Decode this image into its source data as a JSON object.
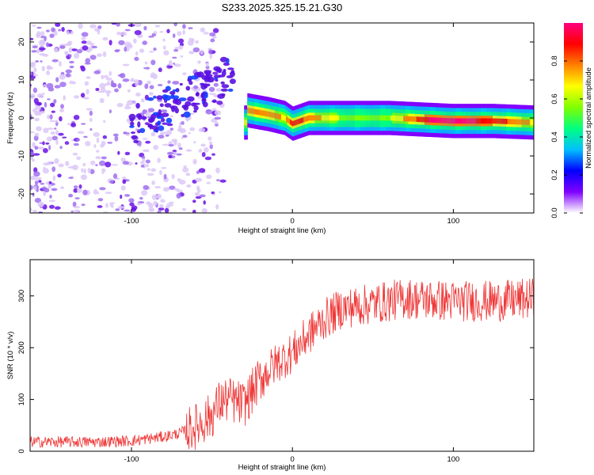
{
  "title": "S233.2025.325.15.21.G30",
  "chart_data": [
    {
      "type": "heatmap",
      "title": "S233.2025.325.15.21.G30",
      "xlabel": "Height of straight line (km)",
      "ylabel": "Frequency (Hz)",
      "xlim": [
        -163,
        150
      ],
      "ylim": [
        -25,
        25
      ],
      "xticks": [
        -100,
        0,
        100
      ],
      "yticks": [
        -20,
        -10,
        0,
        10,
        20
      ],
      "colorbar": {
        "label": "Normalized spectral amplitude",
        "range": [
          0,
          1
        ],
        "ticks": [
          0.0,
          0.2,
          0.4,
          0.6,
          0.8
        ],
        "tick_labels": [
          "0.0",
          "0.2",
          "0.4",
          "0.6",
          "0.8"
        ],
        "colormap": [
          "#ffffff",
          "#8000ff",
          "#0000ff",
          "#00c0ff",
          "#00ff80",
          "#80ff00",
          "#ffff00",
          "#ff8000",
          "#ff0000",
          "#ff0080"
        ]
      },
      "ridge": [
        {
          "x": -28,
          "f": 2.0,
          "a": 0.8
        },
        {
          "x": -15,
          "f": 1.0,
          "a": 0.8
        },
        {
          "x": -5,
          "f": 0.0,
          "a": 0.7
        },
        {
          "x": 0,
          "f": -1.5,
          "a": 0.9
        },
        {
          "x": 10,
          "f": 0.0,
          "a": 0.8
        },
        {
          "x": 30,
          "f": 0.0,
          "a": 0.6
        },
        {
          "x": 60,
          "f": 0.0,
          "a": 0.6
        },
        {
          "x": 85,
          "f": -0.5,
          "a": 0.95
        },
        {
          "x": 100,
          "f": -0.8,
          "a": 1.0
        },
        {
          "x": 125,
          "f": -0.8,
          "a": 0.9
        },
        {
          "x": 150,
          "f": -1.2,
          "a": 0.7
        }
      ]
    },
    {
      "type": "line",
      "xlabel": "Height of straight line (km)",
      "ylabel": "SNR (10 * v/v)",
      "xlim": [
        -163,
        150
      ],
      "ylim": [
        0,
        370
      ],
      "xticks": [
        -100,
        0,
        100
      ],
      "yticks": [
        0,
        100,
        200,
        300
      ],
      "color": "#ef3535",
      "series": [
        {
          "name": "SNR",
          "x": [
            -163,
            -140,
            -120,
            -100,
            -80,
            -70,
            -60,
            -50,
            -45,
            -40,
            -35,
            -30,
            -25,
            -20,
            -10,
            0,
            10,
            20,
            30,
            50,
            70,
            100,
            130,
            150
          ],
          "values": [
            18,
            18,
            18,
            20,
            28,
            35,
            48,
            70,
            95,
            100,
            95,
            90,
            115,
            140,
            170,
            190,
            225,
            255,
            275,
            285,
            295,
            290,
            290,
            295
          ]
        }
      ]
    }
  ]
}
